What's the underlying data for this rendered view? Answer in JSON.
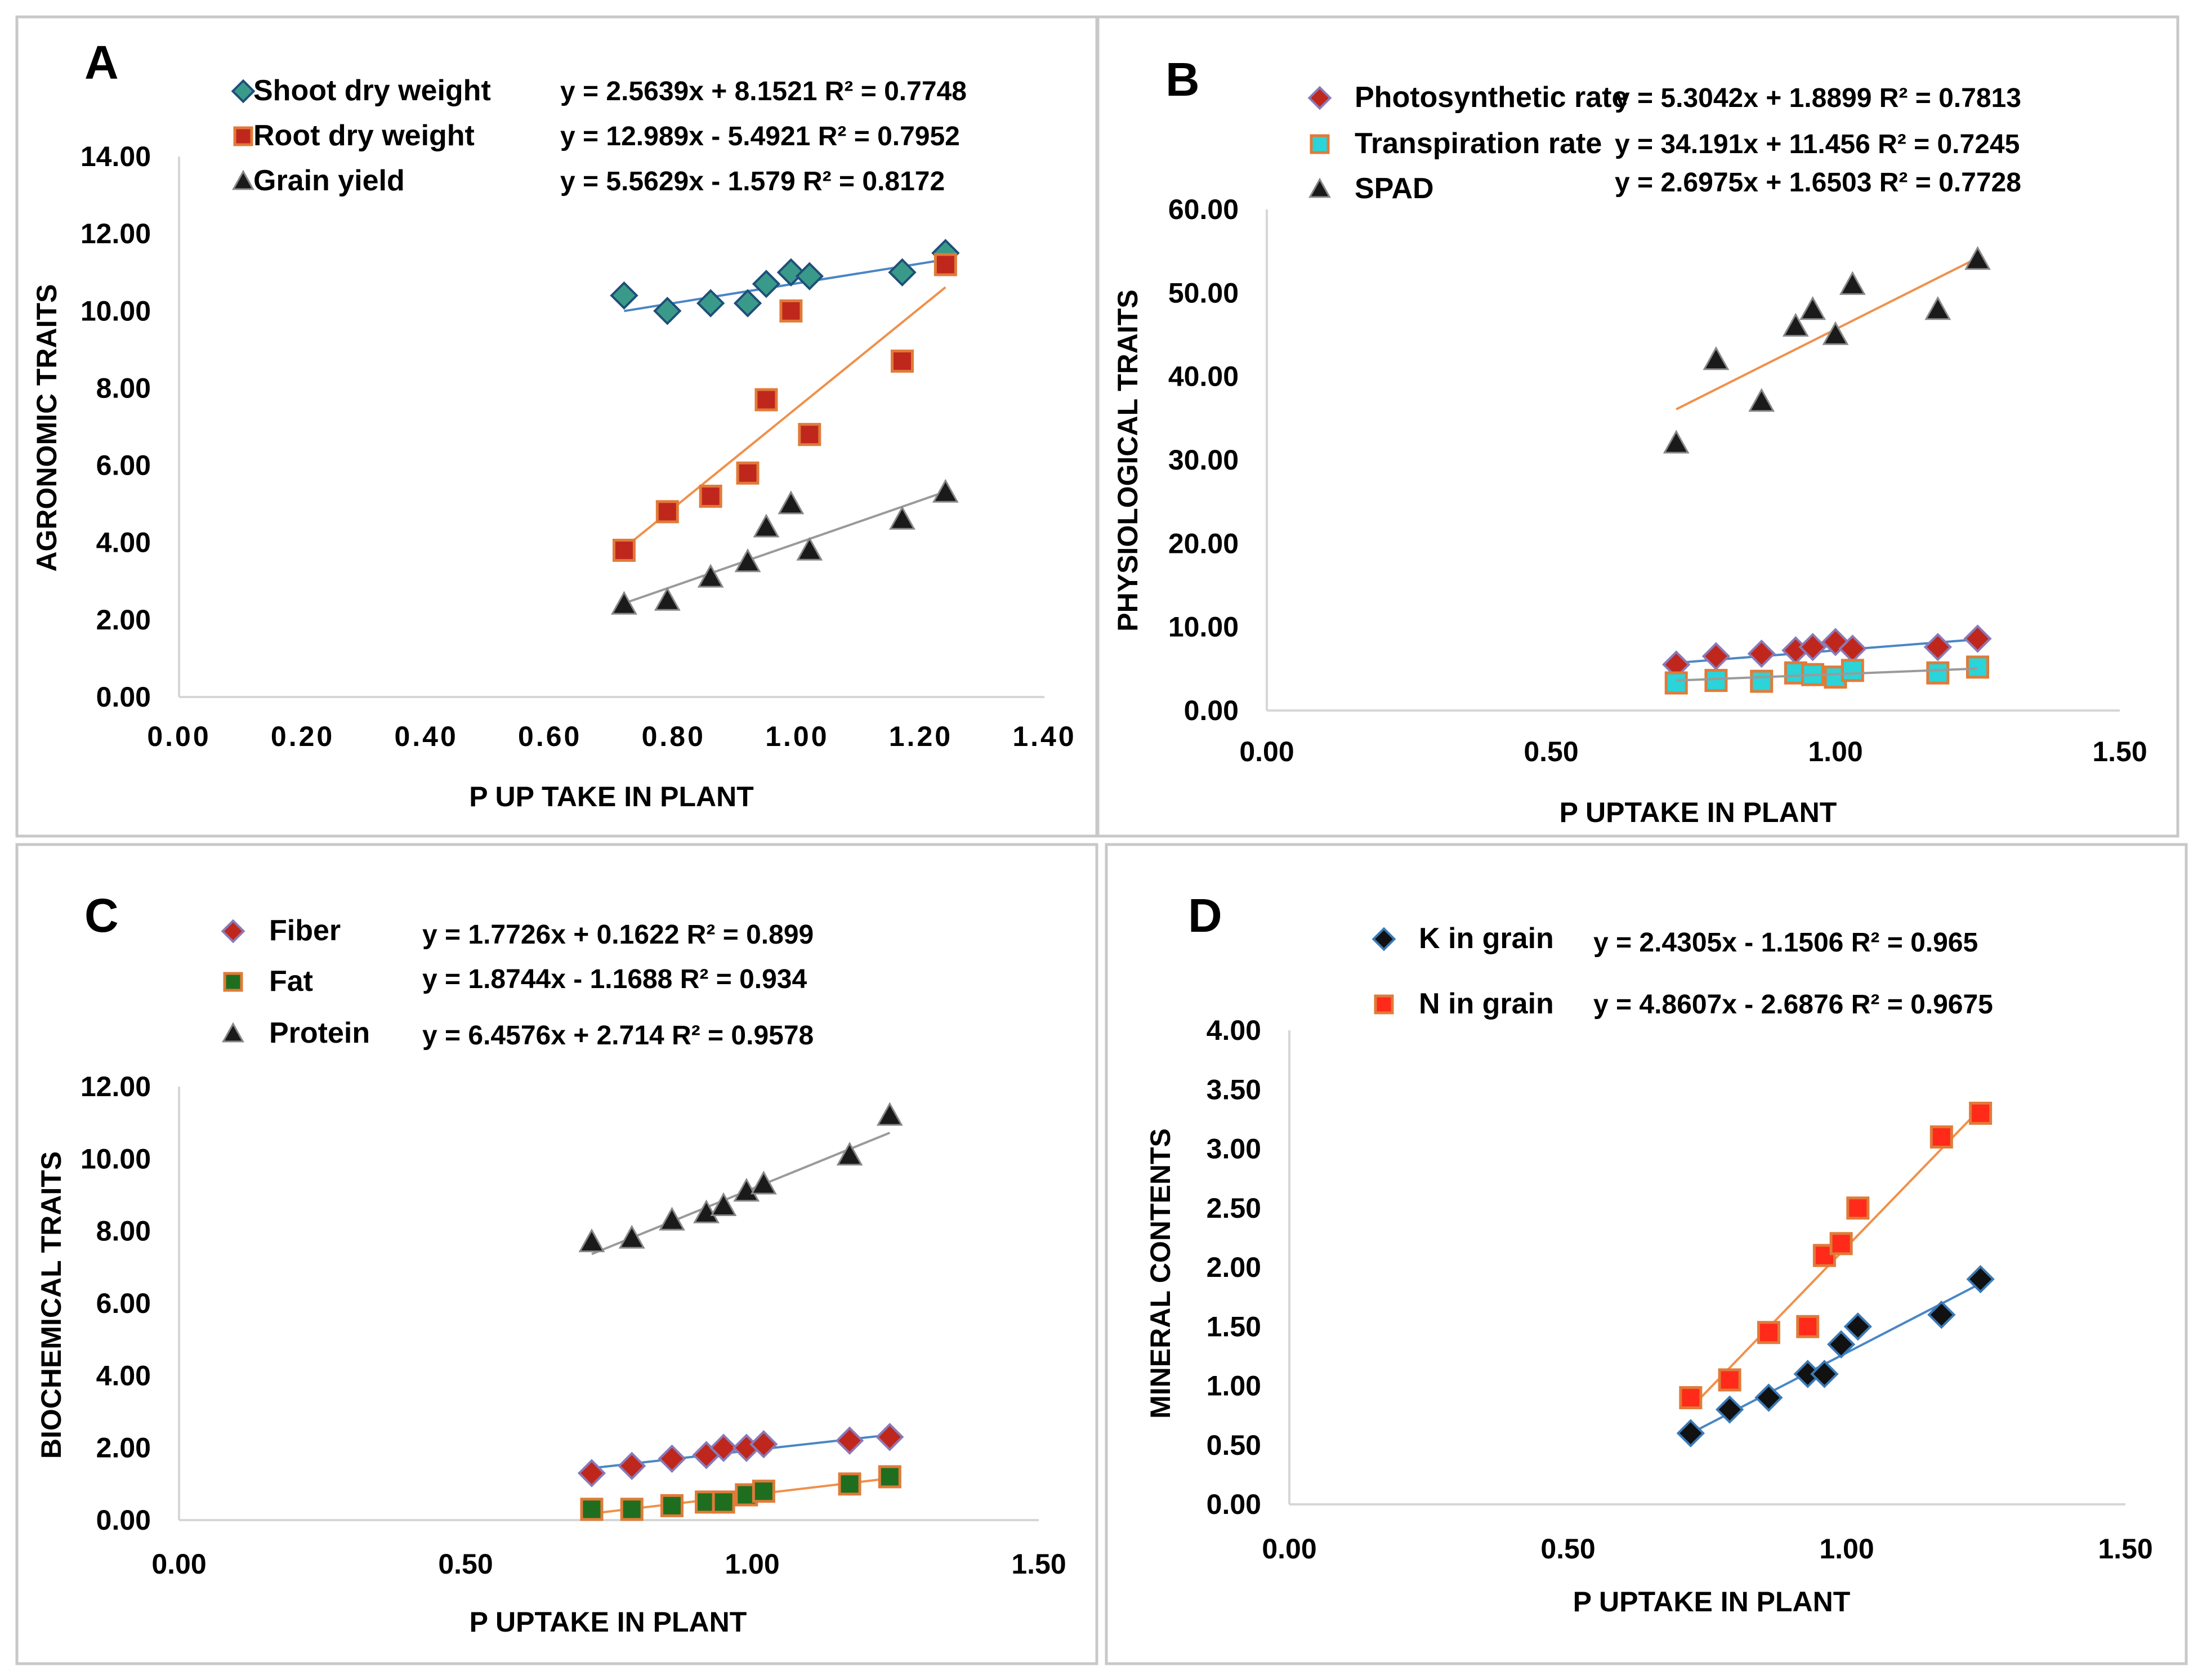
{
  "chart_data": [
    {
      "type": "scatter",
      "panel": "A",
      "xlabel": "P UP TAKE IN PLANT",
      "ylabel": "AGRONOMIC TRAITS",
      "xlim": [
        0,
        1.4
      ],
      "ylim": [
        0,
        14
      ],
      "xticks": [
        "0.00",
        "0.20",
        "0.40",
        "0.60",
        "0.80",
        "1.00",
        "1.20",
        "1.40"
      ],
      "yticks": [
        "0.00",
        "2.00",
        "4.00",
        "6.00",
        "8.00",
        "10.00",
        "12.00",
        "14.00"
      ],
      "series": [
        {
          "name": "Shoot dry weight",
          "marker": "diamond",
          "fill": "#3a9a8a",
          "stroke": "#1e4f78",
          "line": "#4a86c4",
          "equation": "y = 2.5639x + 8.1521 R² = 0.7748",
          "slope": 2.5639,
          "intercept": 8.1521,
          "x": [
            0.72,
            0.79,
            0.86,
            0.92,
            0.95,
            0.99,
            1.02,
            1.17,
            1.24
          ],
          "y": [
            10.4,
            10.0,
            10.2,
            10.2,
            10.7,
            11.0,
            10.9,
            11.0,
            11.5
          ]
        },
        {
          "name": "Root dry weight",
          "marker": "square",
          "fill": "#c0271c",
          "stroke": "#e07b39",
          "line": "#f0904a",
          "equation": "y = 12.989x - 5.4921  R² = 0.7952",
          "slope": 12.989,
          "intercept": -5.4921,
          "x": [
            0.72,
            0.79,
            0.86,
            0.92,
            0.95,
            0.99,
            1.02,
            1.17,
            1.24
          ],
          "y": [
            3.8,
            4.8,
            5.2,
            5.8,
            7.7,
            10.0,
            6.8,
            8.7,
            11.2
          ]
        },
        {
          "name": "Grain yield",
          "marker": "triangle",
          "fill": "#1a1a1a",
          "stroke": "#888888",
          "line": "#9a9a9a",
          "equation": "y = 5.5629x - 1.579 R² = 0.8172",
          "slope": 5.5629,
          "intercept": -1.579,
          "x": [
            0.72,
            0.79,
            0.86,
            0.92,
            0.95,
            0.99,
            1.02,
            1.17,
            1.24
          ],
          "y": [
            2.4,
            2.5,
            3.1,
            3.5,
            4.4,
            5.0,
            3.8,
            4.6,
            5.3
          ]
        }
      ]
    },
    {
      "type": "scatter",
      "panel": "B",
      "xlabel": "P UPTAKE IN PLANT",
      "ylabel": "PHYSIOLOGICAL TRAITS",
      "xlim": [
        0,
        1.5
      ],
      "ylim": [
        0,
        60
      ],
      "xticks": [
        "0.00",
        "0.50",
        "1.00",
        "1.50"
      ],
      "yticks": [
        "0.00",
        "10.00",
        "20.00",
        "30.00",
        "40.00",
        "50.00",
        "60.00"
      ],
      "series": [
        {
          "name": "Photosynthetic rate",
          "marker": "diamond",
          "fill": "#c0271c",
          "stroke": "#8a7ab8",
          "line": "#4a86c4",
          "equation": "y = 5.3042x + 1.8899  R² = 0.7813",
          "slope": 5.3042,
          "intercept": 1.8899,
          "x": [
            0.72,
            0.79,
            0.87,
            0.93,
            0.96,
            1.0,
            1.03,
            1.18,
            1.25
          ],
          "y": [
            5.5,
            6.5,
            6.8,
            7.2,
            7.6,
            8.2,
            7.4,
            7.6,
            8.6
          ]
        },
        {
          "name": "Transpiration rate",
          "marker": "square",
          "fill": "#2ad4d8",
          "stroke": "#e07b39",
          "line": "#f0904a",
          "equation": "y = 34.191x + 11.456  R² = 0.7245",
          "slope": 34.191,
          "intercept": 11.456,
          "x": [
            0.72,
            0.79,
            0.87,
            0.93,
            0.96,
            1.0,
            1.03,
            1.18,
            1.25
          ],
          "y": [
            3.3,
            3.6,
            3.5,
            4.5,
            4.3,
            4.0,
            4.8,
            4.5,
            5.2
          ]
        },
        {
          "name": "SPAD",
          "marker": "triangle",
          "fill": "#1a1a1a",
          "stroke": "#888888",
          "line": "#9a9a9a",
          "equation": "y = 2.6975x + 1.6503  R² = 0.7728",
          "slope": 2.6975,
          "intercept": 1.6503,
          "x": [
            0.72,
            0.79,
            0.87,
            0.93,
            0.96,
            1.0,
            1.03,
            1.18,
            1.25
          ],
          "y": [
            32,
            42,
            37,
            46,
            48,
            45,
            51,
            48,
            54
          ]
        }
      ]
    },
    {
      "type": "scatter",
      "panel": "C",
      "xlabel": "P UPTAKE IN PLANT",
      "ylabel": "BIOCHEMICAL TRAITS",
      "xlim": [
        0,
        1.5
      ],
      "ylim": [
        0,
        12
      ],
      "xticks": [
        "0.00",
        "0.50",
        "1.00",
        "1.50"
      ],
      "yticks": [
        "0.00",
        "2.00",
        "4.00",
        "6.00",
        "8.00",
        "10.00",
        "12.00"
      ],
      "series": [
        {
          "name": "Fiber",
          "marker": "diamond",
          "fill": "#c0271c",
          "stroke": "#8a7ab8",
          "line": "#4a86c4",
          "equation": "y = 1.7726x + 0.1622 R² = 0.899",
          "slope": 1.7726,
          "intercept": 0.1622,
          "x": [
            0.72,
            0.79,
            0.86,
            0.92,
            0.95,
            0.99,
            1.02,
            1.17,
            1.24
          ],
          "y": [
            1.3,
            1.5,
            1.7,
            1.8,
            2.0,
            2.0,
            2.1,
            2.2,
            2.3
          ]
        },
        {
          "name": "Fat",
          "marker": "square",
          "fill": "#1f6e1f",
          "stroke": "#e07b39",
          "line": "#f0904a",
          "equation": "y = 1.8744x - 1.1688  R² = 0.934",
          "slope": 1.8744,
          "intercept": -1.1688,
          "x": [
            0.72,
            0.79,
            0.86,
            0.92,
            0.95,
            0.99,
            1.02,
            1.17,
            1.24
          ],
          "y": [
            0.3,
            0.3,
            0.4,
            0.5,
            0.5,
            0.7,
            0.8,
            1.0,
            1.2
          ]
        },
        {
          "name": "Protein",
          "marker": "triangle",
          "fill": "#1a1a1a",
          "stroke": "#888888",
          "line": "#9a9a9a",
          "equation": "y = 6.4576x + 2.714  R² = 0.9578",
          "slope": 6.4576,
          "intercept": 2.714,
          "x": [
            0.72,
            0.79,
            0.86,
            0.92,
            0.95,
            0.99,
            1.02,
            1.17,
            1.24
          ],
          "y": [
            7.7,
            7.8,
            8.3,
            8.5,
            8.7,
            9.1,
            9.3,
            10.1,
            11.2
          ]
        }
      ]
    },
    {
      "type": "scatter",
      "panel": "D",
      "xlabel": "P UPTAKE IN PLANT",
      "ylabel": "MINERAL CONTENTS",
      "xlim": [
        0,
        1.5
      ],
      "ylim": [
        0,
        4
      ],
      "xticks": [
        "0.00",
        "0.50",
        "1.00",
        "1.50"
      ],
      "yticks": [
        "0.00",
        "0.50",
        "1.00",
        "1.50",
        "2.00",
        "2.50",
        "3.00",
        "3.50",
        "4.00"
      ],
      "series": [
        {
          "name": "K in grain",
          "marker": "diamond",
          "fill": "#111111",
          "stroke": "#3a7ab8",
          "line": "#4a86c4",
          "equation": "y = 2.4305x - 1.1506  R² = 0.965",
          "slope": 2.4305,
          "intercept": -1.1506,
          "x": [
            0.72,
            0.79,
            0.86,
            0.93,
            0.96,
            0.99,
            1.02,
            1.17,
            1.24
          ],
          "y": [
            0.6,
            0.8,
            0.9,
            1.1,
            1.1,
            1.35,
            1.5,
            1.6,
            1.9
          ]
        },
        {
          "name": "N in grain",
          "marker": "square",
          "fill": "#ff2a1a",
          "stroke": "#e07b39",
          "line": "#f0904a",
          "equation": "y = 4.8607x - 2.6876 R² = 0.9675",
          "slope": 4.8607,
          "intercept": -2.6876,
          "x": [
            0.72,
            0.79,
            0.86,
            0.93,
            0.96,
            0.99,
            1.02,
            1.17,
            1.24
          ],
          "y": [
            0.9,
            1.05,
            1.45,
            1.5,
            2.1,
            2.2,
            2.5,
            3.1,
            3.3
          ]
        }
      ]
    }
  ]
}
